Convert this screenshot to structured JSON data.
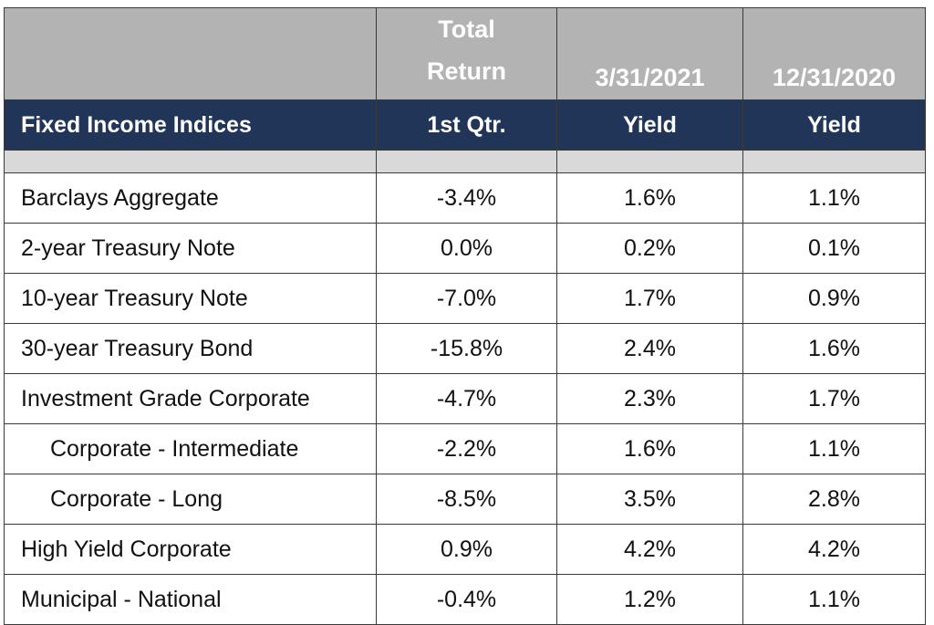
{
  "table": {
    "header_top": {
      "col1_line1": "Total",
      "col1_line2": "Return",
      "col2": "3/31/2021",
      "col3": "12/31/2020"
    },
    "header_main": {
      "col0": "Fixed Income Indices",
      "col1": "1st Qtr.",
      "col2": "Yield",
      "col3": "Yield"
    },
    "rows": [
      {
        "name": "Barclays Aggregate",
        "total_return": "-3.4%",
        "yield_2021": "1.6%",
        "yield_2020": "1.1%",
        "indented": false
      },
      {
        "name": "2-year Treasury Note",
        "total_return": "0.0%",
        "yield_2021": "0.2%",
        "yield_2020": "0.1%",
        "indented": false
      },
      {
        "name": "10-year Treasury Note",
        "total_return": "-7.0%",
        "yield_2021": "1.7%",
        "yield_2020": "0.9%",
        "indented": false
      },
      {
        "name": "30-year Treasury Bond",
        "total_return": "-15.8%",
        "yield_2021": "2.4%",
        "yield_2020": "1.6%",
        "indented": false
      },
      {
        "name": "Investment Grade Corporate",
        "total_return": "-4.7%",
        "yield_2021": "2.3%",
        "yield_2020": "1.7%",
        "indented": false
      },
      {
        "name": "Corporate - Intermediate",
        "total_return": "-2.2%",
        "yield_2021": "1.6%",
        "yield_2020": "1.1%",
        "indented": true
      },
      {
        "name": "Corporate - Long",
        "total_return": "-8.5%",
        "yield_2021": "3.5%",
        "yield_2020": "2.8%",
        "indented": true
      },
      {
        "name": "High Yield Corporate",
        "total_return": "0.9%",
        "yield_2021": "4.2%",
        "yield_2020": "4.2%",
        "indented": false
      },
      {
        "name": "Municipal - National",
        "total_return": "-0.4%",
        "yield_2021": "1.2%",
        "yield_2020": "1.1%",
        "indented": false
      }
    ]
  },
  "colors": {
    "header_top_bg": "#b3b3b3",
    "header_main_bg": "#213559",
    "spacer_bg": "#d9d9d9",
    "border": "#3a3a3a"
  }
}
